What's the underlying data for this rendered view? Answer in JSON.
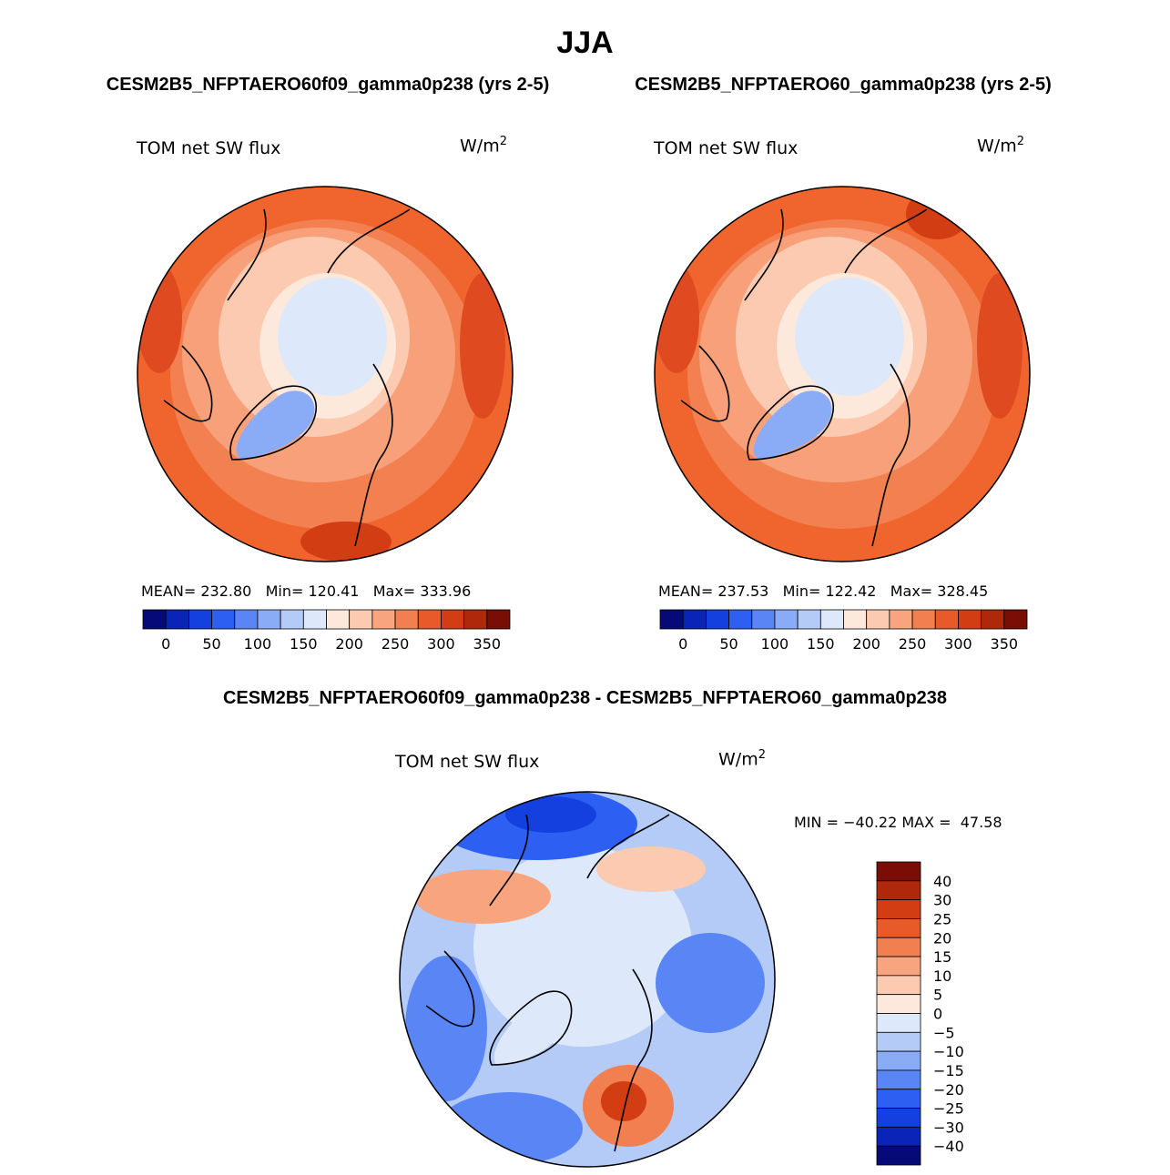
{
  "season": "JJA",
  "panels": [
    {
      "case": "CESM2B5_NFPTAERO60f09_gamma0p238 (yrs 2-5)",
      "variable": "TOM net SW flux",
      "units": "W/m",
      "units_exp": "2",
      "stats": {
        "mean_label": "MEAN=",
        "mean": "232.80",
        "min_label": "Min=",
        "min": "120.41",
        "max_label": "Max=",
        "max": "333.96"
      }
    },
    {
      "case": "CESM2B5_NFPTAERO60_gamma0p238 (yrs 2-5)",
      "variable": "TOM net SW flux",
      "units": "W/m",
      "units_exp": "2",
      "stats": {
        "mean_label": "MEAN=",
        "mean": "237.53",
        "min_label": "Min=",
        "min": "122.42",
        "max_label": "Max=",
        "max": "328.45"
      }
    }
  ],
  "diff_panel": {
    "title": "CESM2B5_NFPTAERO60f09_gamma0p238 - CESM2B5_NFPTAERO60_gamma0p238",
    "variable": "TOM net SW flux",
    "units": "W/m",
    "units_exp": "2",
    "minmax_text": "MIN = −40.22 MAX =  47.58"
  },
  "chart_data": [
    {
      "type": "colorbar",
      "orientation": "horizontal",
      "for": "panel-1",
      "tick_labels": [
        "0",
        "50",
        "100",
        "150",
        "200",
        "250",
        "300",
        "350"
      ],
      "colors": [
        "#050a78",
        "#0b24b8",
        "#1540e0",
        "#2d5ff2",
        "#5a86f5",
        "#8aacf7",
        "#b4cbf7",
        "#dde8fa",
        "#fde8dc",
        "#fccab1",
        "#f8a47e",
        "#f27f4f",
        "#e85a2a",
        "#d23d14",
        "#b0280b",
        "#7a0d06"
      ]
    },
    {
      "type": "colorbar",
      "orientation": "horizontal",
      "for": "panel-2",
      "tick_labels": [
        "0",
        "50",
        "100",
        "150",
        "200",
        "250",
        "300",
        "350"
      ],
      "colors": [
        "#050a78",
        "#0b24b8",
        "#1540e0",
        "#2d5ff2",
        "#5a86f5",
        "#8aacf7",
        "#b4cbf7",
        "#dde8fa",
        "#fde8dc",
        "#fccab1",
        "#f8a47e",
        "#f27f4f",
        "#e85a2a",
        "#d23d14",
        "#b0280b",
        "#7a0d06"
      ]
    },
    {
      "type": "colorbar",
      "orientation": "vertical",
      "for": "diff-panel",
      "tick_labels": [
        "40",
        "30",
        "25",
        "20",
        "15",
        "10",
        "5",
        "0",
        "−5",
        "−10",
        "−15",
        "−20",
        "−25",
        "−30",
        "−40"
      ],
      "colors": [
        "#7a0d06",
        "#b0280b",
        "#d23d14",
        "#e85a2a",
        "#f27f4f",
        "#f8a47e",
        "#fccab1",
        "#fde8dc",
        "#dde8fa",
        "#b4cbf7",
        "#8aacf7",
        "#5a86f5",
        "#2d5ff2",
        "#1540e0",
        "#0b24b8",
        "#050a78"
      ]
    }
  ]
}
